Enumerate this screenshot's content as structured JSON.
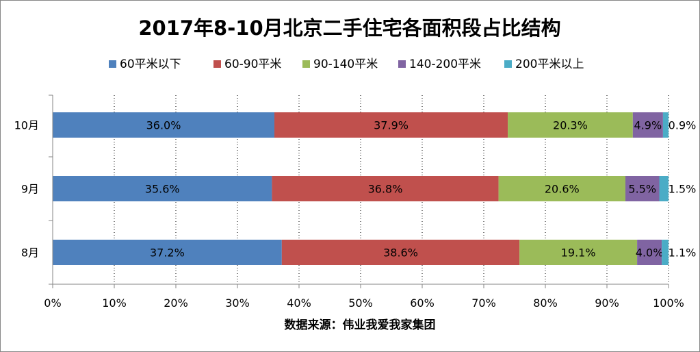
{
  "chart_data": {
    "type": "bar",
    "orientation": "horizontal",
    "stacked": "percent",
    "title": "2017年8-10月北京二手住宅各面积段占比结构",
    "categories": [
      "10月",
      "9月",
      "8月"
    ],
    "series": [
      {
        "name": "60平米以下",
        "color": "#4f81bd",
        "values": [
          36.0,
          35.6,
          37.2
        ],
        "labels": [
          "36.0%",
          "35.6%",
          "37.2%"
        ]
      },
      {
        "name": "60-90平米",
        "color": "#c0504d",
        "values": [
          37.9,
          36.8,
          38.6
        ],
        "labels": [
          "37.9%",
          "36.8%",
          "38.6%"
        ]
      },
      {
        "name": "90-140平米",
        "color": "#9bbb59",
        "values": [
          20.3,
          20.6,
          19.1
        ],
        "labels": [
          "20.3%",
          "20.6%",
          "19.1%"
        ]
      },
      {
        "name": "140-200平米",
        "color": "#8064a2",
        "values": [
          4.9,
          5.5,
          4.0
        ],
        "labels": [
          "4.9%",
          "5.5%",
          "4.0%"
        ]
      },
      {
        "name": "200平米以上",
        "color": "#4bacc6",
        "values": [
          0.9,
          1.5,
          1.1
        ],
        "labels": [
          "0.9%",
          "1.5%",
          "1.1%"
        ]
      }
    ],
    "xlim": [
      0,
      100
    ],
    "x_ticks": [
      "0%",
      "10%",
      "20%",
      "30%",
      "40%",
      "50%",
      "60%",
      "70%",
      "80%",
      "90%",
      "100%"
    ],
    "grid": "vertical dotted",
    "legend_position": "top",
    "source_note": "数据来源：伟业我爱我家集团"
  }
}
